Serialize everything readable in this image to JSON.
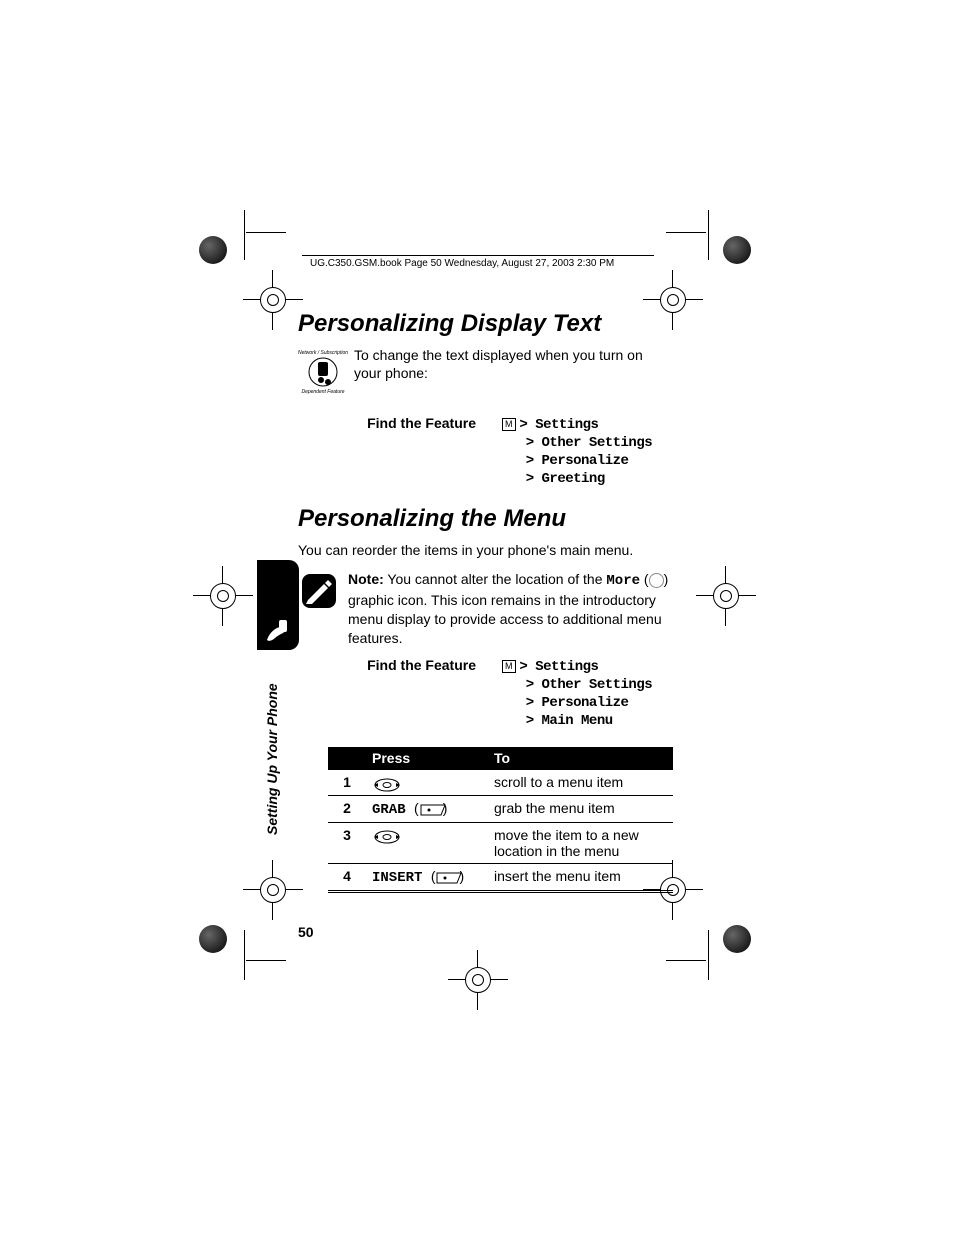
{
  "header": "UG.C350.GSM.book  Page 50  Wednesday, August 27, 2003  2:30 PM",
  "sideLabel": "Setting Up Your Phone",
  "pageNumber": "50",
  "section1": {
    "title": "Personalizing Display Text",
    "intro": "To change the text displayed when you turn on your phone:",
    "findLabel": "Find the Feature",
    "menuRoot": "Settings",
    "path": [
      "Other Settings",
      "Personalize",
      "Greeting"
    ]
  },
  "section2": {
    "title": "Personalizing the Menu",
    "intro": "You can reorder the items in your phone's main menu.",
    "noteLabel": "Note:",
    "noteBefore": " You cannot alter the location of the ",
    "noteMore": "More",
    "noteAfter": " graphic icon. This icon remains in the introductory menu display to provide access to additional menu features.",
    "findLabel": "Find the Feature",
    "menuRoot": "Settings",
    "path": [
      "Other Settings",
      "Personalize",
      "Main Menu"
    ],
    "table": {
      "headers": [
        "",
        "Press",
        "To"
      ],
      "rows": [
        {
          "num": "1",
          "press": "",
          "pressIcon": "nav",
          "to": "scroll to a menu item"
        },
        {
          "num": "2",
          "press": "GRAB",
          "pressIcon": "soft",
          "to": "grab the menu item"
        },
        {
          "num": "3",
          "press": "",
          "pressIcon": "nav",
          "to": "move the item to a new location in the menu"
        },
        {
          "num": "4",
          "press": "INSERT",
          "pressIcon": "soft",
          "to": "insert the menu item"
        }
      ]
    }
  }
}
